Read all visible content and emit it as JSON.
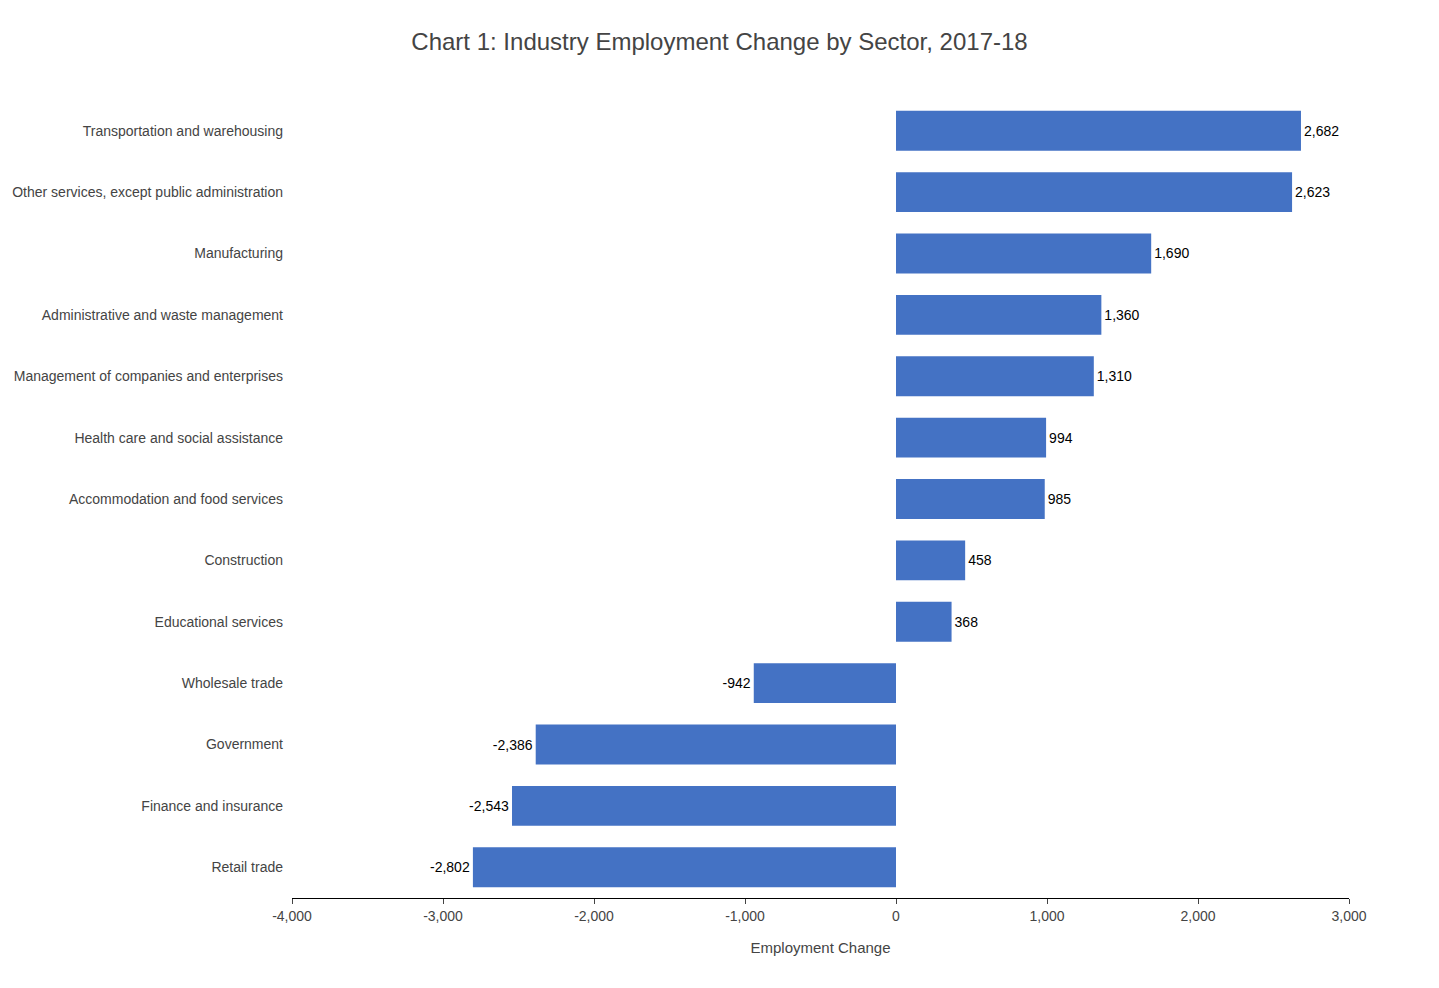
{
  "chart_data": {
    "type": "bar",
    "orientation": "horizontal",
    "title": "Chart 1: Industry Employment Change by Sector, 2017-18",
    "categories": [
      "Retail trade",
      "Finance and insurance",
      "Government",
      "Wholesale trade",
      "Educational services",
      "Construction",
      "Accommodation and food services",
      "Health care and social assistance",
      "Management of companies and enterprises",
      "Administrative and waste management",
      "Manufacturing",
      "Other services, except public administration",
      "Transportation and warehousing"
    ],
    "values": [
      -2802,
      -2543,
      -2386,
      -942,
      368,
      458,
      985,
      994,
      1310,
      1360,
      1690,
      2623,
      2682
    ],
    "value_labels": [
      "-2,802",
      "-2,543",
      "-2,386",
      "-942",
      "368",
      "458",
      "985",
      "994",
      "1,310",
      "1,360",
      "1,690",
      "2,623",
      "2,682"
    ],
    "data_labels": true,
    "color": "#4472C4",
    "xlabel": "Employment Change",
    "xlim": [
      -4000,
      3000
    ],
    "xticks": [
      {
        "value": -4000,
        "label": "-4,000"
      },
      {
        "value": -3000,
        "label": "-3,000"
      },
      {
        "value": -2000,
        "label": "-2,000"
      },
      {
        "value": -1000,
        "label": "-1,000"
      },
      0,
      {
        "value": 1000,
        "label": "1,000"
      },
      {
        "value": 2000,
        "label": "2,000"
      },
      {
        "value": 3000,
        "label": "3,000"
      }
    ],
    "grid": false
  }
}
